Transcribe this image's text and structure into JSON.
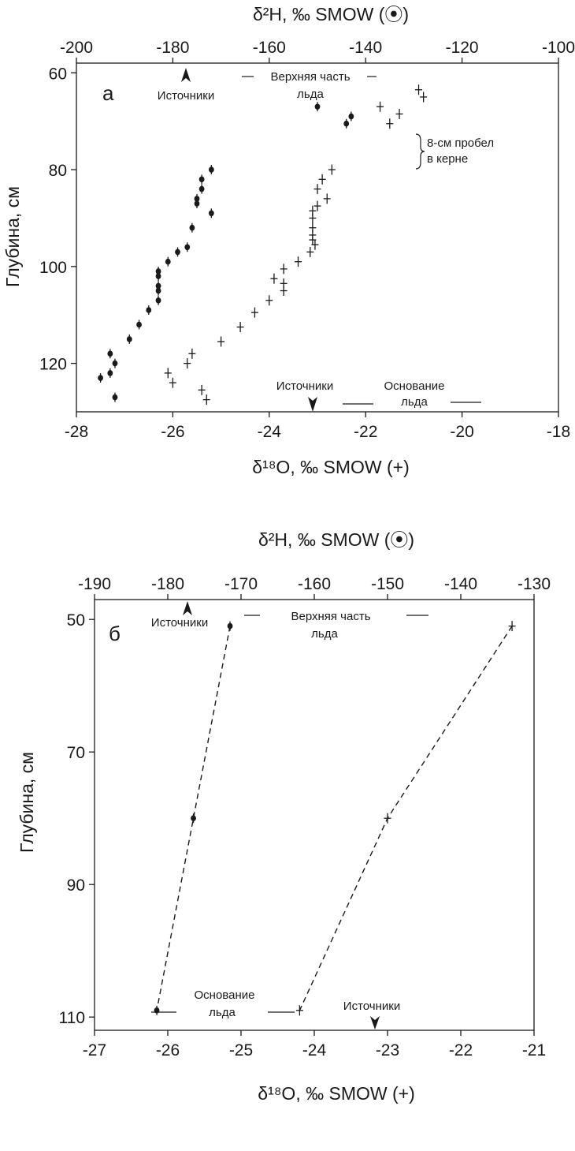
{
  "chart_data": [
    {
      "panel": "a",
      "type": "scatter",
      "top_axis": {
        "label": "δ²H, ‰ SMOW (⦿)",
        "range": [
          -200,
          -100
        ],
        "ticks": [
          -200,
          -180,
          -160,
          -140,
          -120,
          -100
        ]
      },
      "bottom_axis": {
        "label": "δ¹⁸O, ‰ SMOW (+)",
        "range": [
          -28,
          -18
        ],
        "ticks": [
          -28,
          -26,
          -24,
          -22,
          -20,
          -18
        ]
      },
      "left_axis": {
        "label": "Глубина, см",
        "range": [
          58,
          130
        ],
        "ticks": [
          60,
          80,
          100,
          120
        ],
        "inverted": true
      },
      "annotations": {
        "sources_top": "Источники",
        "top_ice_line1": "Верхняя часть",
        "top_ice_line2": "льда",
        "gap_line1": "8-см пробел",
        "gap_line2": "в керне",
        "sources_bottom": "Источники",
        "base_ice_line1": "Основание",
        "base_ice_line2": "льда"
      },
      "series": [
        {
          "name": "δ²H",
          "axis": "top",
          "marker": "dot",
          "points": [
            [
              -150,
              67
            ],
            [
              -143,
              69
            ],
            [
              -144,
              70.5
            ],
            [
              -172,
              80
            ],
            [
              -174,
              82
            ],
            [
              -174,
              84
            ],
            [
              -175,
              86
            ],
            [
              -175,
              87
            ],
            [
              -172,
              89
            ],
            [
              -176,
              92
            ],
            [
              -177,
              96
            ],
            [
              -179,
              97
            ],
            [
              -181,
              99
            ],
            [
              -183,
              101
            ],
            [
              -183,
              102
            ],
            [
              -183,
              104
            ],
            [
              -183,
              105
            ],
            [
              -183,
              107
            ],
            [
              -185,
              109
            ],
            [
              -187,
              112
            ],
            [
              -189,
              115
            ],
            [
              -193,
              118
            ],
            [
              -192,
              120
            ],
            [
              -193,
              122
            ],
            [
              -195,
              123
            ],
            [
              -192,
              127
            ]
          ]
        },
        {
          "name": "δ¹⁸O",
          "axis": "bottom",
          "marker": "plus",
          "points": [
            [
              -20.9,
              63.5
            ],
            [
              -20.8,
              65
            ],
            [
              -21.7,
              67
            ],
            [
              -21.3,
              68.5
            ],
            [
              -21.5,
              70.5
            ],
            [
              -22.7,
              80
            ],
            [
              -22.9,
              82
            ],
            [
              -23.0,
              84
            ],
            [
              -22.8,
              86
            ],
            [
              -23.0,
              87.5
            ],
            [
              -23.1,
              88.5
            ],
            [
              -23.1,
              90
            ],
            [
              -23.1,
              92
            ],
            [
              -23.1,
              93.5
            ],
            [
              -23.1,
              94.5
            ],
            [
              -23.05,
              95.5
            ],
            [
              -23.15,
              97
            ],
            [
              -23.4,
              99
            ],
            [
              -23.7,
              100.5
            ],
            [
              -23.9,
              102.5
            ],
            [
              -23.7,
              103.5
            ],
            [
              -23.7,
              105
            ],
            [
              -24.0,
              107
            ],
            [
              -24.3,
              109.5
            ],
            [
              -24.6,
              112.5
            ],
            [
              -25.0,
              115.5
            ],
            [
              -25.6,
              118
            ],
            [
              -25.7,
              120
            ],
            [
              -26.1,
              122
            ],
            [
              -26.0,
              124
            ],
            [
              -25.4,
              125.5
            ],
            [
              -25.3,
              127.5
            ]
          ]
        }
      ]
    },
    {
      "panel": "б",
      "type": "line",
      "top_axis": {
        "label": "δ²H, ‰ SMOW (⦿)",
        "range": [
          -190,
          -130
        ],
        "ticks": [
          -190,
          -180,
          -170,
          -160,
          -150,
          -140,
          -130
        ]
      },
      "bottom_axis": {
        "label": "δ¹⁸O, ‰ SMOW (+)",
        "range": [
          -27,
          -21
        ],
        "ticks": [
          -27,
          -26,
          -25,
          -24,
          -23,
          -22,
          -21
        ]
      },
      "left_axis": {
        "label": "Глубина, см",
        "range": [
          47,
          112
        ],
        "ticks": [
          50,
          70,
          90,
          110
        ],
        "inverted": true
      },
      "annotations": {
        "sources_top": "Источники",
        "top_ice_line1": "Верхняя часть",
        "top_ice_line2": "льда",
        "base_ice_line1": "Основание",
        "base_ice_line2": "льда",
        "sources_bottom": "Источники"
      },
      "series": [
        {
          "name": "δ²H",
          "axis": "top",
          "marker": "dot",
          "dashed": true,
          "points": [
            [
              -171.5,
              51
            ],
            [
              -176.5,
              80
            ],
            [
              -181.5,
              109
            ]
          ]
        },
        {
          "name": "δ¹⁸O",
          "axis": "bottom",
          "marker": "plus",
          "dashed": true,
          "points": [
            [
              -21.3,
              51
            ],
            [
              -23.0,
              80
            ],
            [
              -24.2,
              109
            ]
          ]
        }
      ]
    }
  ]
}
